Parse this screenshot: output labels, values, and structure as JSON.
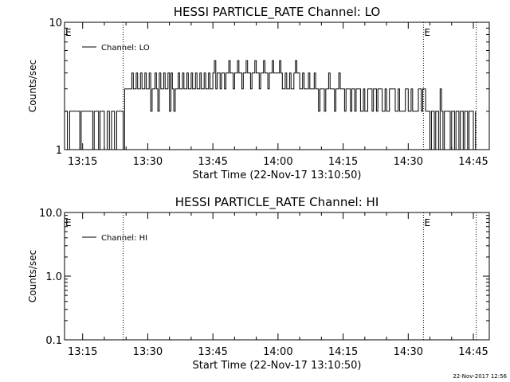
{
  "footer_stamp": "22-Nov-2017 12:56",
  "chart_data": [
    {
      "type": "line",
      "title": "HESSI PARTICLE_RATE Channel: LO",
      "xlabel": "Start Time (22-Nov-17 13:10:50)",
      "ylabel": "Counts/sec",
      "y_scale": "log",
      "ylim": [
        1,
        10
      ],
      "y_ticks": [
        "1",
        "10"
      ],
      "x_ticks": [
        "13:15",
        "13:30",
        "13:45",
        "14:00",
        "14:15",
        "14:30",
        "14:45"
      ],
      "legend": {
        "entries": [
          "Channel: LO"
        ],
        "placement": "top-left"
      },
      "markers": [
        {
          "label": "E",
          "time": "13:10:50"
        },
        {
          "label": "E",
          "time": "14:33:30"
        }
      ],
      "vlines": [
        "13:24:20",
        "14:33:30",
        "14:45:40"
      ],
      "series": [
        {
          "name": "Channel: LO",
          "points": [
            [
              "13:11:00",
              2
            ],
            [
              "13:11:30",
              1
            ],
            [
              "13:12:00",
              2
            ],
            [
              "13:14:00",
              2
            ],
            [
              "13:14:20",
              1
            ],
            [
              "13:14:40",
              2
            ],
            [
              "13:17:00",
              2
            ],
            [
              "13:17:20",
              1
            ],
            [
              "13:17:40",
              2
            ],
            [
              "13:18:40",
              1
            ],
            [
              "13:19:00",
              2
            ],
            [
              "13:20:00",
              1
            ],
            [
              "13:20:40",
              2
            ],
            [
              "13:21:10",
              1
            ],
            [
              "13:21:40",
              2
            ],
            [
              "13:22:20",
              1
            ],
            [
              "13:22:50",
              2
            ],
            [
              "13:23:30",
              2
            ],
            [
              "13:24:20",
              1
            ],
            [
              "13:24:40",
              3
            ],
            [
              "13:26:00",
              3
            ],
            [
              "13:26:20",
              4
            ],
            [
              "13:26:40",
              3
            ],
            [
              "13:27:20",
              4
            ],
            [
              "13:27:40",
              3
            ],
            [
              "13:28:20",
              4
            ],
            [
              "13:28:40",
              3
            ],
            [
              "13:29:20",
              4
            ],
            [
              "13:29:40",
              3
            ],
            [
              "13:30:20",
              4
            ],
            [
              "13:30:40",
              2
            ],
            [
              "13:31:00",
              3
            ],
            [
              "13:31:40",
              4
            ],
            [
              "13:32:00",
              3
            ],
            [
              "13:32:20",
              2
            ],
            [
              "13:32:40",
              4
            ],
            [
              "13:33:00",
              3
            ],
            [
              "13:33:40",
              4
            ],
            [
              "13:34:00",
              3
            ],
            [
              "13:34:40",
              4
            ],
            [
              "13:35:00",
              2
            ],
            [
              "13:35:20",
              4
            ],
            [
              "13:35:40",
              3
            ],
            [
              "13:36:00",
              2
            ],
            [
              "13:36:20",
              3
            ],
            [
              "13:37:00",
              4
            ],
            [
              "13:37:20",
              3
            ],
            [
              "13:38:00",
              4
            ],
            [
              "13:38:20",
              3
            ],
            [
              "13:39:00",
              4
            ],
            [
              "13:39:20",
              3
            ],
            [
              "13:40:00",
              4
            ],
            [
              "13:40:20",
              3
            ],
            [
              "13:41:00",
              4
            ],
            [
              "13:41:20",
              3
            ],
            [
              "13:42:00",
              4
            ],
            [
              "13:42:20",
              3
            ],
            [
              "13:43:00",
              4
            ],
            [
              "13:43:20",
              3
            ],
            [
              "13:44:00",
              4
            ],
            [
              "13:44:20",
              3
            ],
            [
              "13:45:00",
              4
            ],
            [
              "13:45:20",
              5
            ],
            [
              "13:45:40",
              3
            ],
            [
              "13:46:00",
              4
            ],
            [
              "13:46:40",
              3
            ],
            [
              "13:47:00",
              4
            ],
            [
              "13:47:40",
              3
            ],
            [
              "13:48:00",
              4
            ],
            [
              "13:48:40",
              5
            ],
            [
              "13:49:00",
              4
            ],
            [
              "13:49:40",
              3
            ],
            [
              "13:50:00",
              4
            ],
            [
              "13:50:40",
              5
            ],
            [
              "13:51:00",
              4
            ],
            [
              "13:51:40",
              3
            ],
            [
              "13:52:00",
              4
            ],
            [
              "13:52:40",
              5
            ],
            [
              "13:53:00",
              4
            ],
            [
              "13:53:40",
              3
            ],
            [
              "13:54:00",
              4
            ],
            [
              "13:54:40",
              5
            ],
            [
              "13:55:00",
              4
            ],
            [
              "13:55:40",
              3
            ],
            [
              "13:56:00",
              4
            ],
            [
              "13:56:40",
              5
            ],
            [
              "13:57:00",
              4
            ],
            [
              "13:57:40",
              3
            ],
            [
              "13:58:00",
              4
            ],
            [
              "13:58:40",
              5
            ],
            [
              "13:59:00",
              4
            ],
            [
              "14:00:00",
              4
            ],
            [
              "14:00:20",
              5
            ],
            [
              "14:00:40",
              4
            ],
            [
              "14:01:00",
              3
            ],
            [
              "14:01:40",
              4
            ],
            [
              "14:02:00",
              3
            ],
            [
              "14:02:40",
              4
            ],
            [
              "14:03:00",
              3
            ],
            [
              "14:03:40",
              4
            ],
            [
              "14:04:00",
              5
            ],
            [
              "14:04:20",
              4
            ],
            [
              "14:05:00",
              3
            ],
            [
              "14:05:40",
              4
            ],
            [
              "14:06:00",
              3
            ],
            [
              "14:07:00",
              4
            ],
            [
              "14:07:20",
              3
            ],
            [
              "14:08:00",
              3
            ],
            [
              "14:08:20",
              4
            ],
            [
              "14:08:40",
              3
            ],
            [
              "14:09:20",
              2
            ],
            [
              "14:09:40",
              3
            ],
            [
              "14:10:20",
              3
            ],
            [
              "14:10:40",
              2
            ],
            [
              "14:11:00",
              3
            ],
            [
              "14:11:40",
              4
            ],
            [
              "14:12:00",
              3
            ],
            [
              "14:12:40",
              3
            ],
            [
              "14:13:00",
              2
            ],
            [
              "14:13:20",
              3
            ],
            [
              "14:14:00",
              4
            ],
            [
              "14:14:20",
              3
            ],
            [
              "14:15:00",
              3
            ],
            [
              "14:15:20",
              2
            ],
            [
              "14:15:40",
              3
            ],
            [
              "14:16:40",
              2
            ],
            [
              "14:17:00",
              3
            ],
            [
              "14:17:40",
              2
            ],
            [
              "14:18:00",
              3
            ],
            [
              "14:18:40",
              3
            ],
            [
              "14:19:00",
              2
            ],
            [
              "14:19:40",
              3
            ],
            [
              "14:20:00",
              2
            ],
            [
              "14:20:40",
              3
            ],
            [
              "14:21:00",
              3
            ],
            [
              "14:21:40",
              2
            ],
            [
              "14:22:00",
              3
            ],
            [
              "14:22:40",
              2
            ],
            [
              "14:23:00",
              3
            ],
            [
              "14:23:40",
              3
            ],
            [
              "14:24:00",
              2
            ],
            [
              "14:24:40",
              3
            ],
            [
              "14:25:00",
              2
            ],
            [
              "14:25:40",
              3
            ],
            [
              "14:26:40",
              3
            ],
            [
              "14:27:00",
              2
            ],
            [
              "14:27:40",
              3
            ],
            [
              "14:28:00",
              2
            ],
            [
              "14:29:00",
              2
            ],
            [
              "14:29:20",
              3
            ],
            [
              "14:30:00",
              2
            ],
            [
              "14:30:40",
              3
            ],
            [
              "14:31:00",
              2
            ],
            [
              "14:32:00",
              2
            ],
            [
              "14:32:20",
              3
            ],
            [
              "14:33:00",
              2
            ],
            [
              "14:33:20",
              3
            ],
            [
              "14:34:00",
              2
            ],
            [
              "14:34:40",
              2
            ],
            [
              "14:35:00",
              1
            ],
            [
              "14:35:20",
              2
            ],
            [
              "14:36:00",
              1
            ],
            [
              "14:36:20",
              2
            ],
            [
              "14:37:00",
              1
            ],
            [
              "14:37:20",
              3
            ],
            [
              "14:37:40",
              2
            ],
            [
              "14:38:00",
              1
            ],
            [
              "14:38:20",
              2
            ],
            [
              "14:39:20",
              2
            ],
            [
              "14:39:40",
              1
            ],
            [
              "14:40:00",
              2
            ],
            [
              "14:40:40",
              1
            ],
            [
              "14:41:00",
              2
            ],
            [
              "14:41:40",
              1
            ],
            [
              "14:42:00",
              2
            ],
            [
              "14:42:40",
              1
            ],
            [
              "14:43:00",
              2
            ],
            [
              "14:43:40",
              1
            ],
            [
              "14:44:00",
              2
            ],
            [
              "14:44:40",
              2
            ],
            [
              "14:45:00",
              1
            ],
            [
              "14:45:30",
              2
            ]
          ]
        }
      ]
    },
    {
      "type": "line",
      "title": "HESSI PARTICLE_RATE Channel: HI",
      "xlabel": "Start Time (22-Nov-17 13:10:50)",
      "ylabel": "Counts/sec",
      "y_scale": "log",
      "ylim": [
        0.1,
        10
      ],
      "y_ticks": [
        "0.1",
        "1.0",
        "10.0"
      ],
      "x_ticks": [
        "13:15",
        "13:30",
        "13:45",
        "14:00",
        "14:15",
        "14:30",
        "14:45"
      ],
      "legend": {
        "entries": [
          "Channel: HI"
        ],
        "placement": "top-left"
      },
      "markers": [
        {
          "label": "E",
          "time": "13:10:50"
        },
        {
          "label": "E",
          "time": "14:33:30"
        }
      ],
      "vlines": [
        "13:24:20",
        "14:33:30",
        "14:45:40"
      ],
      "series": [
        {
          "name": "Channel: HI",
          "points": []
        }
      ]
    }
  ]
}
